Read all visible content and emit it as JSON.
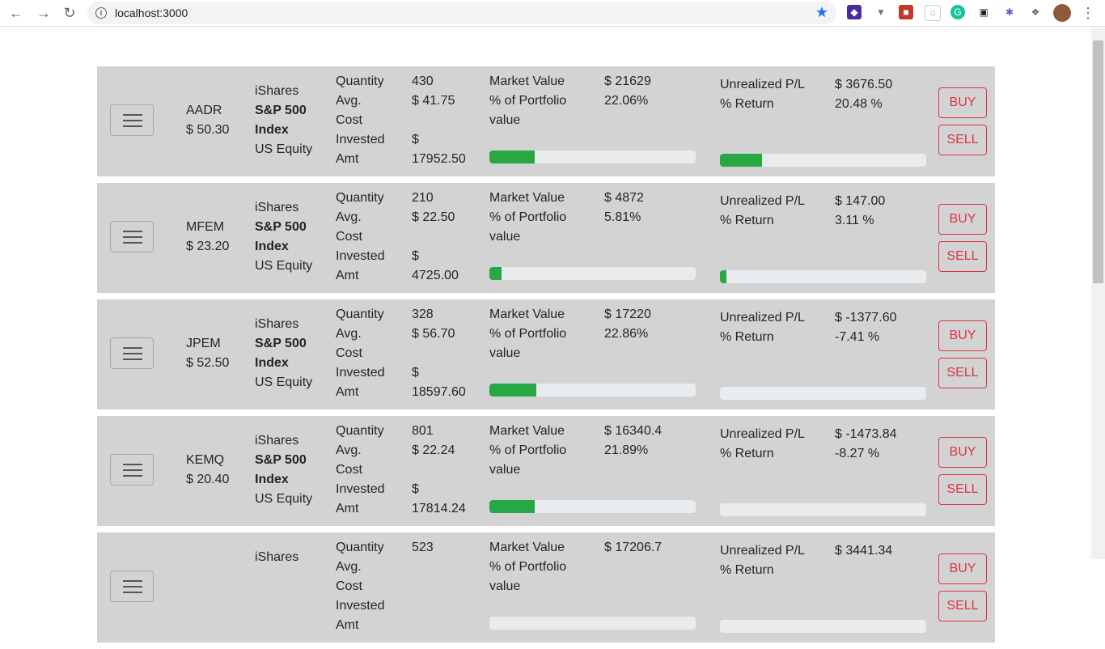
{
  "browser": {
    "url": "localhost:3000"
  },
  "colors": {
    "card_bg": "#d3d3d3",
    "bar_fill": "#28a745",
    "bar_track": "#e9ecef",
    "btn": "#dc3545"
  },
  "labels": {
    "quantity": "Quantity",
    "avg": "Avg.",
    "cost": "Cost",
    "invested": "Invested",
    "amt": "Amt",
    "market_value": "Market Value",
    "pct_portfolio": "% of Portfolio",
    "value": "value",
    "unrealized": "Unrealized P/L",
    "pct_return": "% Return",
    "buy": "BUY",
    "sell": "SELL"
  },
  "holdings": [
    {
      "ticker": "AADR",
      "price": "$ 50.30",
      "issuer": "iShares",
      "index_line1": "S&P 500",
      "index_line2": "Index",
      "category": "US Equity",
      "quantity": "430",
      "avg_cost": "$ 41.75",
      "invested_currency": "$",
      "invested_amount": "17952.50",
      "market_value": "$ 21629",
      "pct_portfolio": "22.06%",
      "portfolio_fraction": 0.22,
      "unrealized_pl": "$ 3676.50",
      "pct_return": "20.48 %",
      "return_fraction": 0.2048
    },
    {
      "ticker": "MFEM",
      "price": "$ 23.20",
      "issuer": "iShares",
      "index_line1": "S&P 500",
      "index_line2": "Index",
      "category": "US Equity",
      "quantity": "210",
      "avg_cost": "$ 22.50",
      "invested_currency": "$",
      "invested_amount": "4725.00",
      "market_value": "$ 4872",
      "pct_portfolio": "5.81%",
      "portfolio_fraction": 0.058,
      "unrealized_pl": "$ 147.00",
      "pct_return": "3.11 %",
      "return_fraction": 0.031
    },
    {
      "ticker": "JPEM",
      "price": "$ 52.50",
      "issuer": "iShares",
      "index_line1": "S&P 500",
      "index_line2": "Index",
      "category": "US Equity",
      "quantity": "328",
      "avg_cost": "$ 56.70",
      "invested_currency": "$",
      "invested_amount": "18597.60",
      "market_value": "$ 17220",
      "pct_portfolio": "22.86%",
      "portfolio_fraction": 0.2286,
      "unrealized_pl": "$ -1377.60",
      "pct_return": "-7.41 %",
      "return_fraction": 0
    },
    {
      "ticker": "KEMQ",
      "price": "$ 20.40",
      "issuer": "iShares",
      "index_line1": "S&P 500",
      "index_line2": "Index",
      "category": "US Equity",
      "quantity": "801",
      "avg_cost": "$ 22.24",
      "invested_currency": "$",
      "invested_amount": "17814.24",
      "market_value": "$ 16340.4",
      "pct_portfolio": "21.89%",
      "portfolio_fraction": 0.2189,
      "unrealized_pl": "$ -1473.84",
      "pct_return": "-8.27 %",
      "return_fraction": 0
    },
    {
      "ticker": "",
      "price": "",
      "issuer": "iShares",
      "index_line1": "",
      "index_line2": "",
      "category": "",
      "quantity": "523",
      "avg_cost": "",
      "invested_currency": "",
      "invested_amount": "",
      "market_value": "$ 17206.7",
      "pct_portfolio": "",
      "portfolio_fraction": 0,
      "unrealized_pl": "$ 3441.34",
      "pct_return": "",
      "return_fraction": 0
    }
  ]
}
